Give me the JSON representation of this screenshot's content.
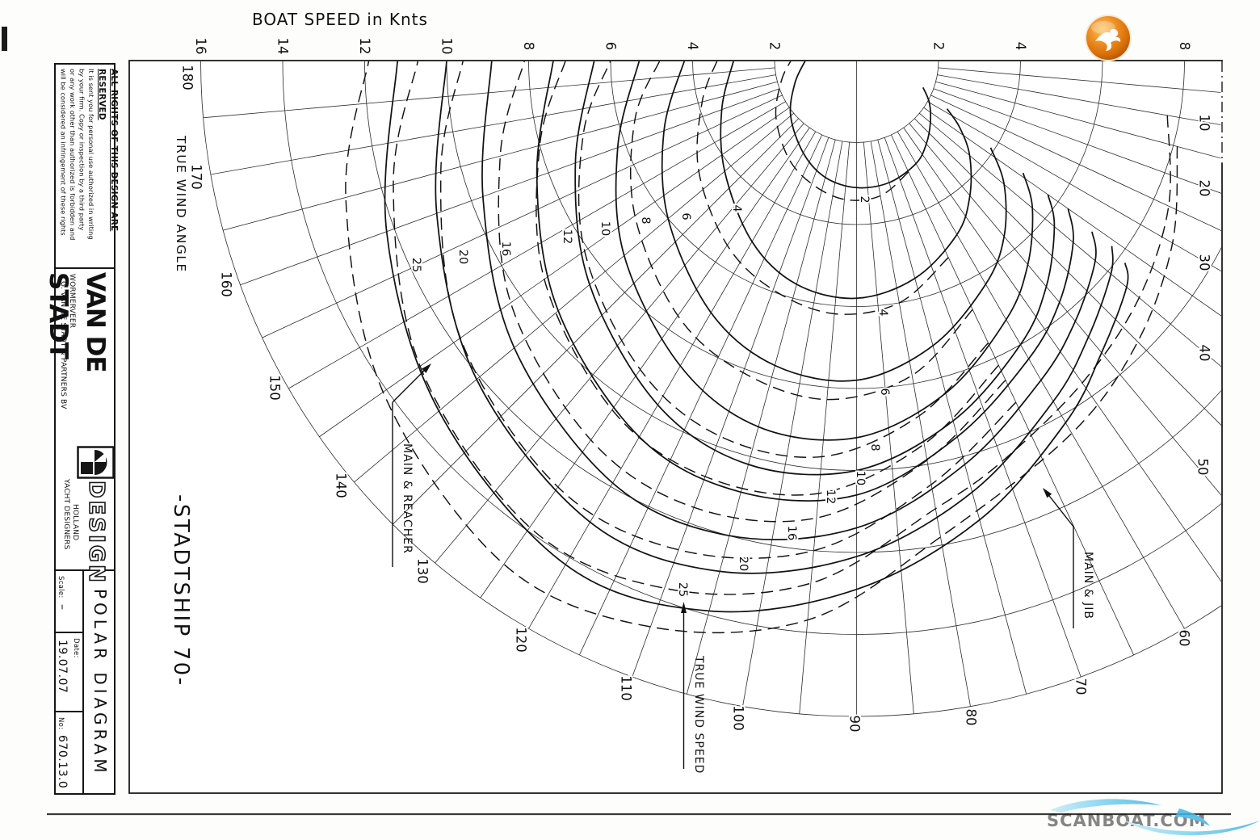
{
  "sheet": {
    "axis_title": "BOAT SPEED in Knts",
    "true_wind_angle_label": "TRUE WIND ANGLE",
    "design_title": "-STADTSHIP 70-",
    "annotations": {
      "main_reacher": "MAIN & REACHER",
      "main_jib": "MAIN & JIB",
      "true_wind_speed": "TRUE WIND SPEED"
    }
  },
  "title_block": {
    "rights_heading": "ALL RIGHTS OF THIS DESIGN ARE RESERVED",
    "rights_lines": [
      "It is sent you for personal use authorized in writing",
      "by your firm. Copy or inspection by a third party",
      "or any work other than authorized is forbidden and",
      "will be considered an infringement of these rights"
    ],
    "company_name": "VAN DE STADT",
    "company_sub": "DESIGN",
    "company_addr_line1": "E.G. VAN DE STADT & PARTNERS BV",
    "company_addr_line2": "WORMERVEER",
    "company_prof_line1": "YACHT DESIGNERS",
    "company_prof_line2": "HOLLAND",
    "scale_label": "Scale:",
    "scale_value": "–",
    "date_label": "Date:",
    "date_value": "19.07.07",
    "no_label": "No:",
    "no_value": "670.13.0",
    "doc_title": "POLAR DIAGRAM"
  },
  "watermark": {
    "text": "SCANBOAT.COM",
    "color": "#7fd3ef"
  },
  "logo": {
    "icon": "gull-icon",
    "color": "#e07b1a"
  },
  "chart_data": {
    "type": "line",
    "coordinate_system": "polar",
    "title": "POLAR DIAGRAM -STADTSHIP 70-",
    "radial_axis": {
      "label": "BOAT SPEED in Knts",
      "unit": "knots",
      "rings": [
        2,
        4,
        6,
        8,
        10,
        12,
        14,
        16
      ],
      "tick_labels_left": [
        16,
        14,
        12,
        10,
        8,
        6,
        4,
        2
      ],
      "tick_labels_right": [
        2,
        4,
        6,
        8
      ]
    },
    "angular_axis": {
      "label": "TRUE WIND ANGLE",
      "unit": "degrees",
      "min": 0,
      "max": 180,
      "major_step": 10,
      "minor_step": 5,
      "tick_labels": [
        10,
        20,
        30,
        40,
        50,
        60,
        70,
        80,
        90,
        100,
        110,
        120,
        130,
        140,
        150,
        160,
        170,
        180
      ]
    },
    "wind_speeds": [
      2,
      4,
      6,
      8,
      10,
      12,
      16,
      20,
      25
    ],
    "series": [
      {
        "name": "MAIN & JIB",
        "style": "solid",
        "curves": {
          "2": [
            [
              22,
              1.75
            ],
            [
              30,
              2.05
            ],
            [
              40,
              2.35
            ],
            [
              50,
              2.65
            ],
            [
              60,
              2.9
            ],
            [
              75,
              3.08
            ],
            [
              90,
              3.1
            ],
            [
              105,
              2.95
            ],
            [
              120,
              2.6
            ],
            [
              140,
              2.1
            ],
            [
              160,
              1.6
            ],
            [
              180,
              1.25
            ]
          ],
          "4": [
            [
              28,
              2.5
            ],
            [
              33,
              3.0
            ],
            [
              40,
              3.6
            ],
            [
              50,
              4.3
            ],
            [
              60,
              4.9
            ],
            [
              75,
              5.5
            ],
            [
              90,
              5.8
            ],
            [
              105,
              5.65
            ],
            [
              120,
              5.1
            ],
            [
              140,
              4.2
            ],
            [
              160,
              3.5
            ],
            [
              180,
              3.0
            ]
          ],
          "6": [
            [
              33,
              3.9
            ],
            [
              40,
              4.7
            ],
            [
              50,
              5.6
            ],
            [
              60,
              6.3
            ],
            [
              75,
              7.2
            ],
            [
              90,
              7.8
            ],
            [
              105,
              7.7
            ],
            [
              120,
              7.1
            ],
            [
              140,
              6.0
            ],
            [
              160,
              5.0
            ],
            [
              180,
              4.2
            ]
          ],
          "8": [
            [
              34,
              4.9
            ],
            [
              40,
              5.6
            ],
            [
              50,
              6.5
            ],
            [
              60,
              7.3
            ],
            [
              75,
              8.4
            ],
            [
              90,
              9.2
            ],
            [
              105,
              9.25
            ],
            [
              120,
              8.6
            ],
            [
              140,
              7.4
            ],
            [
              160,
              6.2
            ],
            [
              180,
              5.3
            ]
          ],
          "10": [
            [
              35,
              5.7
            ],
            [
              40,
              6.3
            ],
            [
              50,
              7.2
            ],
            [
              60,
              8.0
            ],
            [
              75,
              9.1
            ],
            [
              90,
              10.0
            ],
            [
              105,
              10.2
            ],
            [
              120,
              9.7
            ],
            [
              140,
              8.5
            ],
            [
              160,
              7.3
            ],
            [
              180,
              6.4
            ]
          ],
          "12": [
            [
              35,
              6.3
            ],
            [
              40,
              6.9
            ],
            [
              50,
              7.7
            ],
            [
              60,
              8.4
            ],
            [
              75,
              9.5
            ],
            [
              90,
              10.6
            ],
            [
              105,
              10.9
            ],
            [
              120,
              10.6
            ],
            [
              140,
              9.5
            ],
            [
              160,
              8.3
            ],
            [
              180,
              7.4
            ]
          ],
          "16": [
            [
              36,
              7.1
            ],
            [
              40,
              7.6
            ],
            [
              50,
              8.3
            ],
            [
              60,
              9.0
            ],
            [
              75,
              10.2
            ],
            [
              90,
              11.4
            ],
            [
              105,
              12.0
            ],
            [
              120,
              11.9
            ],
            [
              140,
              10.9
            ],
            [
              160,
              9.7
            ],
            [
              180,
              8.9
            ]
          ],
          "20": [
            [
              36,
              7.7
            ],
            [
              40,
              8.1
            ],
            [
              50,
              8.8
            ],
            [
              60,
              9.6
            ],
            [
              75,
              10.9
            ],
            [
              90,
              12.1
            ],
            [
              105,
              12.9
            ],
            [
              120,
              13.0
            ],
            [
              140,
              12.1
            ],
            [
              160,
              10.9
            ],
            [
              180,
              10.0
            ]
          ],
          "25": [
            [
              37,
              8.2
            ],
            [
              40,
              8.6
            ],
            [
              50,
              9.3
            ],
            [
              60,
              10.2
            ],
            [
              75,
              11.6
            ],
            [
              90,
              12.9
            ],
            [
              105,
              13.9
            ],
            [
              120,
              14.2
            ],
            [
              140,
              13.3
            ],
            [
              160,
              12.2
            ],
            [
              180,
              11.2
            ]
          ]
        }
      },
      {
        "name": "MAIN & REACHER",
        "style": "dashed",
        "curves": {
          "2": [
            [
              65,
              3.0
            ],
            [
              80,
              3.35
            ],
            [
              95,
              3.4
            ],
            [
              110,
              3.2
            ],
            [
              125,
              2.9
            ],
            [
              145,
              2.4
            ],
            [
              165,
              1.9
            ],
            [
              180,
              1.6
            ]
          ],
          "4": [
            [
              65,
              5.3
            ],
            [
              80,
              6.0
            ],
            [
              95,
              6.2
            ],
            [
              110,
              5.95
            ],
            [
              125,
              5.5
            ],
            [
              145,
              4.7
            ],
            [
              165,
              3.9
            ],
            [
              180,
              3.4
            ]
          ],
          "6": [
            [
              65,
              6.7
            ],
            [
              80,
              7.8
            ],
            [
              95,
              8.3
            ],
            [
              110,
              8.1
            ],
            [
              125,
              7.6
            ],
            [
              145,
              6.6
            ],
            [
              165,
              5.6
            ],
            [
              180,
              4.8
            ]
          ],
          "8": [
            [
              65,
              7.6
            ],
            [
              80,
              8.8
            ],
            [
              95,
              9.7
            ],
            [
              110,
              9.75
            ],
            [
              125,
              9.2
            ],
            [
              145,
              8.1
            ],
            [
              165,
              6.9
            ],
            [
              180,
              6.0
            ]
          ],
          "10": [
            [
              65,
              8.2
            ],
            [
              80,
              9.5
            ],
            [
              95,
              10.6
            ],
            [
              110,
              10.8
            ],
            [
              125,
              10.4
            ],
            [
              145,
              9.3
            ],
            [
              165,
              8.0
            ],
            [
              180,
              7.1
            ]
          ],
          "12": [
            [
              65,
              8.6
            ],
            [
              80,
              9.9
            ],
            [
              95,
              11.2
            ],
            [
              110,
              11.6
            ],
            [
              125,
              11.3
            ],
            [
              145,
              10.3
            ],
            [
              165,
              9.0
            ],
            [
              180,
              8.1
            ]
          ],
          "16": [
            [
              65,
              9.2
            ],
            [
              80,
              10.5
            ],
            [
              95,
              12.0
            ],
            [
              110,
              12.7
            ],
            [
              125,
              12.7
            ],
            [
              145,
              11.8
            ],
            [
              165,
              10.5
            ],
            [
              180,
              9.6
            ]
          ],
          "20": [
            [
              10,
              7.7
            ],
            [
              25,
              8.4
            ],
            [
              40,
              9.0
            ],
            [
              55,
              9.6
            ],
            [
              70,
              10.4
            ],
            [
              80,
              11.1
            ],
            [
              95,
              12.8
            ],
            [
              110,
              13.7
            ],
            [
              125,
              13.9
            ],
            [
              145,
              13.0
            ],
            [
              165,
              11.7
            ],
            [
              180,
              10.7
            ]
          ],
          "25": [
            [
              15,
              8.1
            ],
            [
              30,
              8.9
            ],
            [
              45,
              9.7
            ],
            [
              60,
              10.5
            ],
            [
              80,
              11.8
            ],
            [
              95,
              13.7
            ],
            [
              110,
              14.7
            ],
            [
              125,
              15.0
            ],
            [
              145,
              14.1
            ],
            [
              165,
              12.9
            ],
            [
              180,
              11.9
            ]
          ]
        }
      }
    ],
    "layout_hints": {
      "center_angle_0_direction": "right",
      "angle_90_direction": "down",
      "grid": true
    }
  }
}
